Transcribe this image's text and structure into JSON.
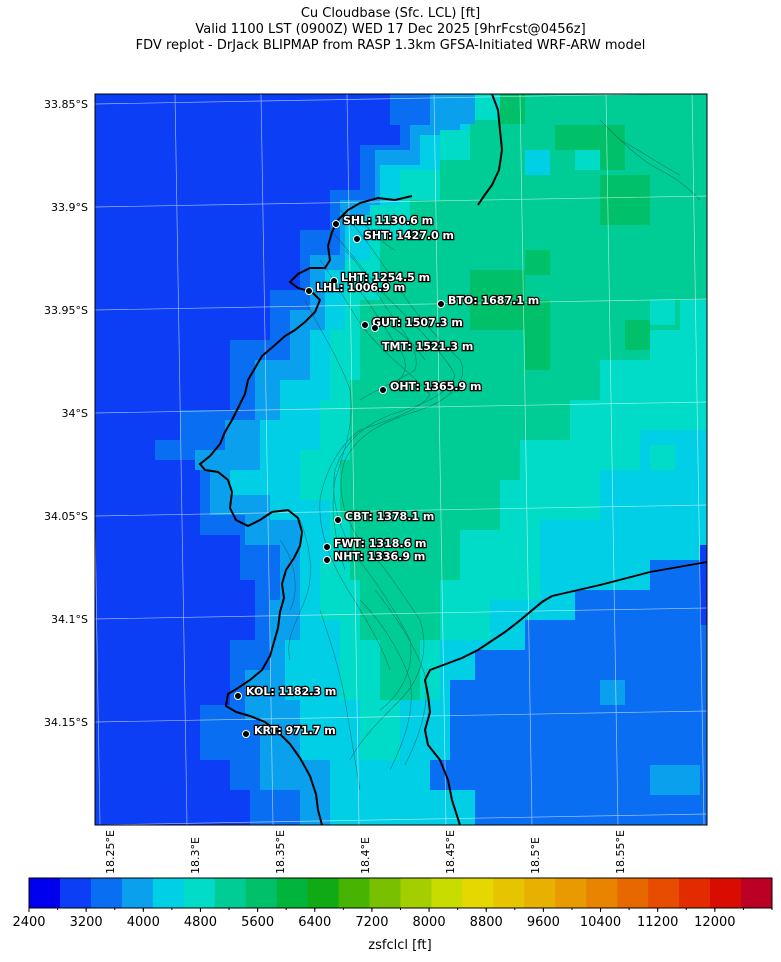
{
  "title": {
    "line1": "Cu Cloudbase (Sfc. LCL) [ft]",
    "line2": "Valid 1100 LST (0900Z) WED 17 Dec 2025 [9hrFcst@0456z]",
    "line3": "FDV replot - DrJack BLIPMAP from RASP 1.3km GFSA-Initiated WRF-ARW model"
  },
  "lat_ticks": [
    "33.85°S",
    "33.9°S",
    "33.95°S",
    "34°S",
    "34.05°S",
    "34.1°S",
    "34.15°S"
  ],
  "lon_ticks": [
    "18.25°E",
    "18.3°E",
    "18.35°E",
    "18.4°E",
    "18.45°E",
    "18.5°E",
    "18.55°E"
  ],
  "stations": [
    {
      "code": "SHL",
      "label": "SHL: 1130.6 m"
    },
    {
      "code": "SHT",
      "label": "SHT: 1427.0 m"
    },
    {
      "code": "LHT",
      "label": "LHT: 1254.5 m"
    },
    {
      "code": "LHL",
      "label": "LHL: 1006.9 m"
    },
    {
      "code": "BTO",
      "label": "BTO: 1687.1 m"
    },
    {
      "code": "GUT",
      "label": "GUT: 1507.3 m"
    },
    {
      "code": "TMT",
      "label": "TMT: 1521.3 m"
    },
    {
      "code": "OHT",
      "label": "OHT: 1365.9 m"
    },
    {
      "code": "CBT",
      "label": "CBT: 1378.1 m"
    },
    {
      "code": "FWT",
      "label": "FWT: 1318.6 m"
    },
    {
      "code": "NHT",
      "label": "NHT: 1336.9 m"
    },
    {
      "code": "KOL",
      "label": "KOL: 1182.3 m"
    },
    {
      "code": "KRT",
      "label": "KRT: 971.7 m"
    }
  ],
  "colorbar": {
    "label": "zsfclcl [ft]",
    "min": 2400,
    "max": 12800,
    "step": 400,
    "tick_labels": [
      "2400",
      "3200",
      "4000",
      "4800",
      "5600",
      "6400",
      "7200",
      "8000",
      "8800",
      "9600",
      "10400",
      "11200",
      "12000"
    ],
    "colors": [
      "#0000ee",
      "#0b3ef5",
      "#0a6ef2",
      "#0aa0ee",
      "#00cfe6",
      "#00dcc8",
      "#00cc96",
      "#00c06a",
      "#00b43c",
      "#10aa14",
      "#46b400",
      "#78c000",
      "#a4ce00",
      "#c8dc00",
      "#e4d800",
      "#e6c400",
      "#e8b000",
      "#e89a00",
      "#e88400",
      "#e86800",
      "#e84c00",
      "#e22c00",
      "#d80c00",
      "#bc0024"
    ]
  },
  "map_colors": {
    "deep_blue": "#0b3ef5",
    "mid_blue": "#0a6ef2",
    "light_blue": "#0aa0ee",
    "cyan": "#00cfe6",
    "aqua": "#00dcc8",
    "teal": "#00cc96",
    "green": "#00c06a"
  }
}
